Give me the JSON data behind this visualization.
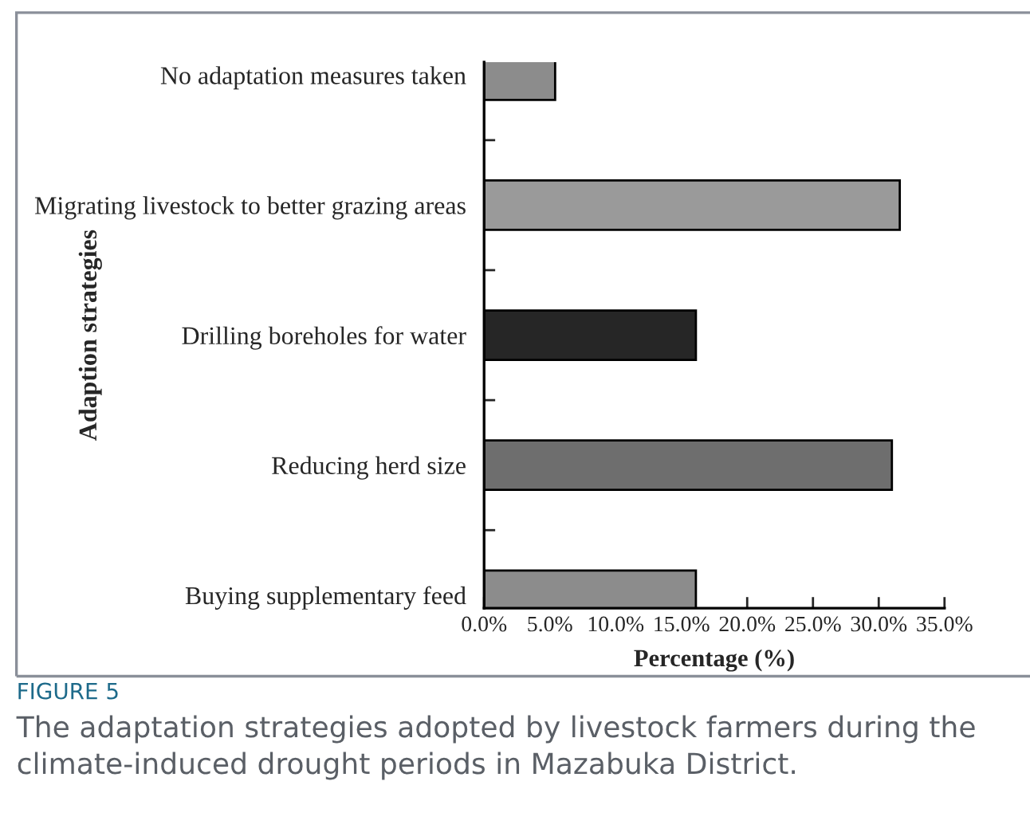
{
  "chart_data": {
    "type": "bar",
    "orientation": "horizontal",
    "xlabel": "Percentage (%)",
    "ylabel": "Adaption strategies",
    "categories": [
      "No adaptation measures taken",
      "Migrating livestock to better grazing areas",
      "Drilling boreholes for water",
      "Reducing herd size",
      "Buying supplementary feed"
    ],
    "values": [
      5.4,
      31.6,
      16.1,
      31.0,
      16.1
    ],
    "colors": [
      "#8c8c8c",
      "#9a9a9a",
      "#262626",
      "#6e6e6e",
      "#8c8c8c"
    ],
    "xlim": [
      0,
      35
    ],
    "xticks": [
      {
        "value": 0,
        "label": "0.0%"
      },
      {
        "value": 5,
        "label": "5.0%"
      },
      {
        "value": 10,
        "label": "10.0%"
      },
      {
        "value": 15,
        "label": "15.0%"
      },
      {
        "value": 20,
        "label": "20.0%"
      },
      {
        "value": 25,
        "label": "25.0%"
      },
      {
        "value": 30,
        "label": "30.0%"
      },
      {
        "value": 35,
        "label": "35.0%"
      }
    ],
    "grid": false,
    "legend": false,
    "annotations": [
      "FIGURE 5",
      "The adaptation strategies adopted by livestock farmers during the climate-induced drought periods in Mazabuka District."
    ]
  }
}
